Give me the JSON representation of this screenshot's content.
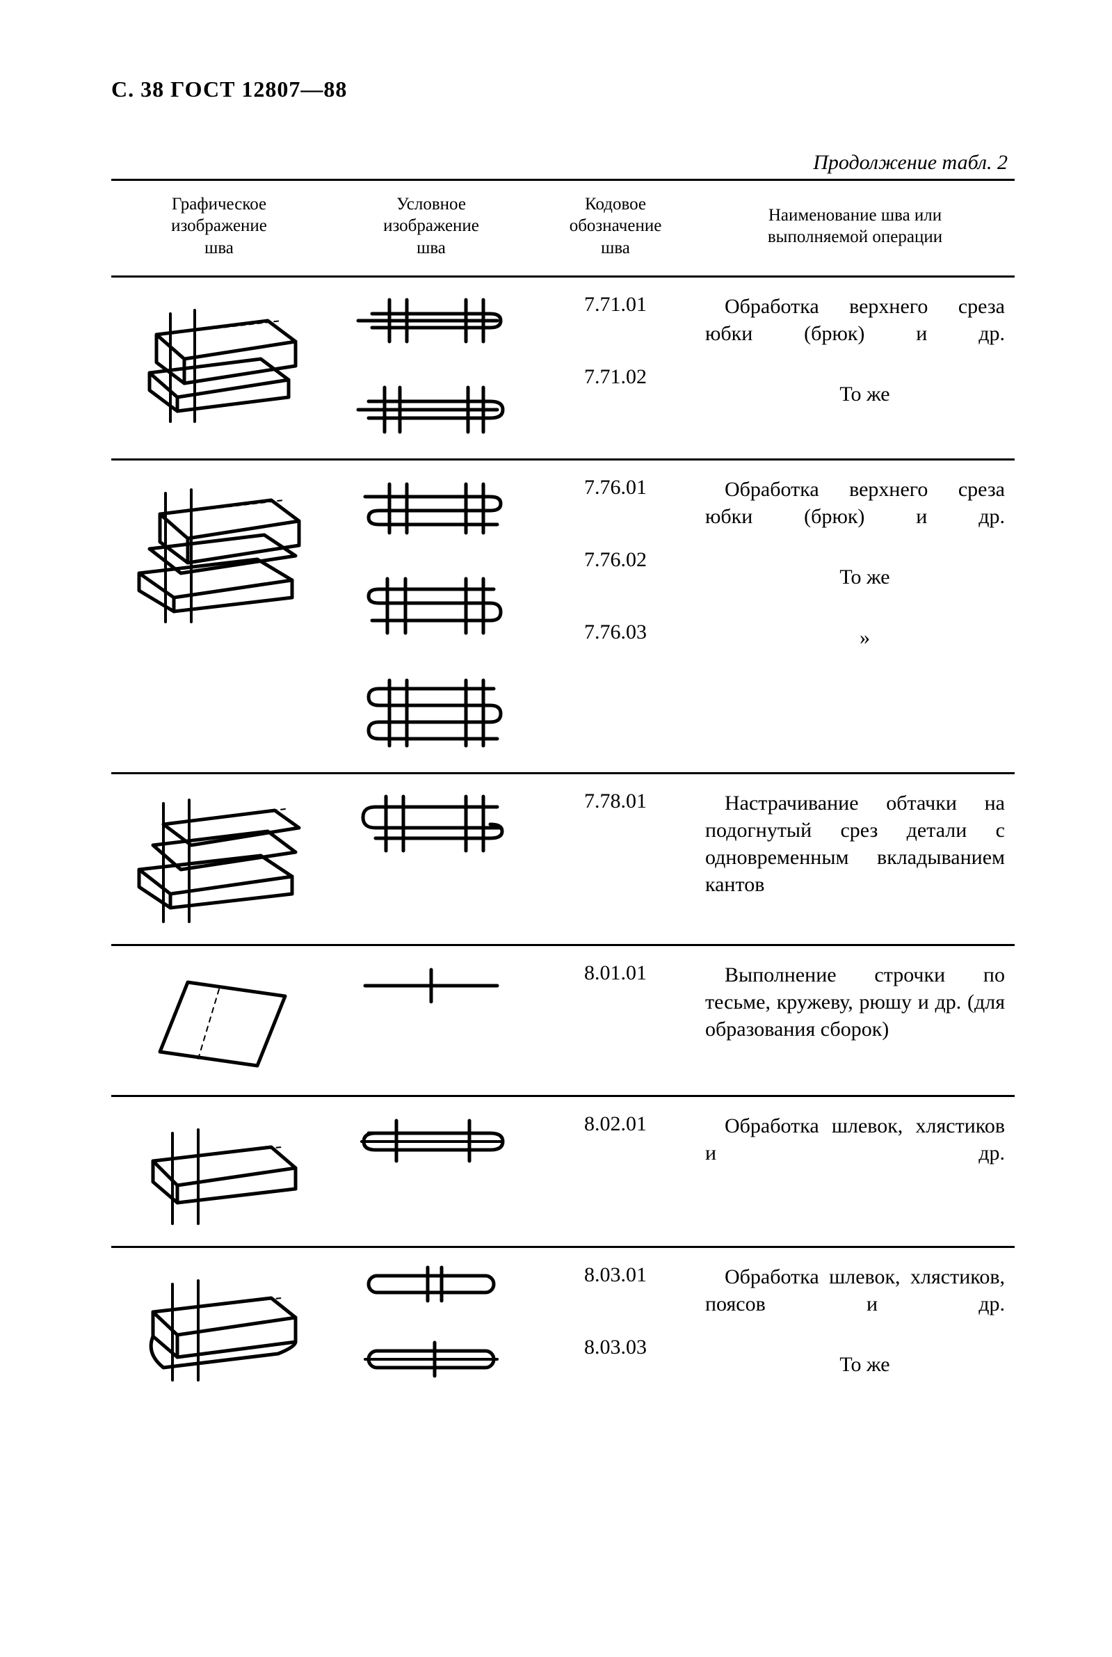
{
  "page_label": "С. 38 ГОСТ 12807—88",
  "continuation": "Продолжение табл. 2",
  "columns": {
    "graphic": "Графическое\nизображение\nшва",
    "symbol": "Условное\nизображение\nшва",
    "code": "Кодовое\nобозначение\nшва",
    "name": "Наименование шва или\nвыполняемой операции"
  },
  "rows": [
    {
      "codes": [
        "7.71.01",
        "7.71.02"
      ],
      "descs": [
        {
          "text": "Обработка верхнего среза юбки (брюк) и др.",
          "spread_first": true
        },
        {
          "text": "То же",
          "center": true
        }
      ],
      "graphic": "iso-fold-2",
      "symbols": [
        "seam-tight-2",
        "seam-open-2"
      ]
    },
    {
      "codes": [
        "7.76.01",
        "7.76.02",
        "7.76.03"
      ],
      "descs": [
        {
          "text": "Обработка верхнего среза юбки (брюк) и др.",
          "spread_first": true
        },
        {
          "text": "То же",
          "center": true
        },
        {
          "text": "»",
          "center": true
        }
      ],
      "graphic": "iso-fold-3",
      "symbols": [
        "seam-loop-a",
        "seam-loop-b",
        "seam-loop-c"
      ]
    },
    {
      "codes": [
        "7.78.01"
      ],
      "descs": [
        {
          "text": "Настрачивание обтачки на подогнутый срез детали с одновременным вкладыванием кантов"
        }
      ],
      "graphic": "iso-fold-4",
      "symbols": [
        "seam-cant"
      ]
    },
    {
      "codes": [
        "8.01.01"
      ],
      "descs": [
        {
          "text": "Выполнение строчки по тесьме, кружеву, рюшу и др. (для образования сборок)"
        }
      ],
      "graphic": "iso-flat",
      "symbols": [
        "seam-single"
      ]
    },
    {
      "codes": [
        "8.02.01"
      ],
      "descs": [
        {
          "text": "Обработка шлевок, хлястиков и др.",
          "spread_first": true
        }
      ],
      "graphic": "iso-belt-1",
      "symbols": [
        "seam-belt-open"
      ]
    },
    {
      "codes": [
        "8.03.01",
        "8.03.03"
      ],
      "descs": [
        {
          "text": "Обработка шлевок, хлястиков, поясов и др.",
          "spread_first": true
        },
        {
          "text": "То же",
          "center": true
        }
      ],
      "graphic": "iso-belt-2",
      "symbols": [
        "seam-belt-round-1",
        "seam-belt-round-2"
      ]
    }
  ],
  "style": {
    "stroke": "#000000",
    "stroke_width_heavy": 5,
    "stroke_width_med": 4,
    "stroke_width_light": 2,
    "font_size_header": 32,
    "font_size_th": 25,
    "font_size_td": 30
  }
}
